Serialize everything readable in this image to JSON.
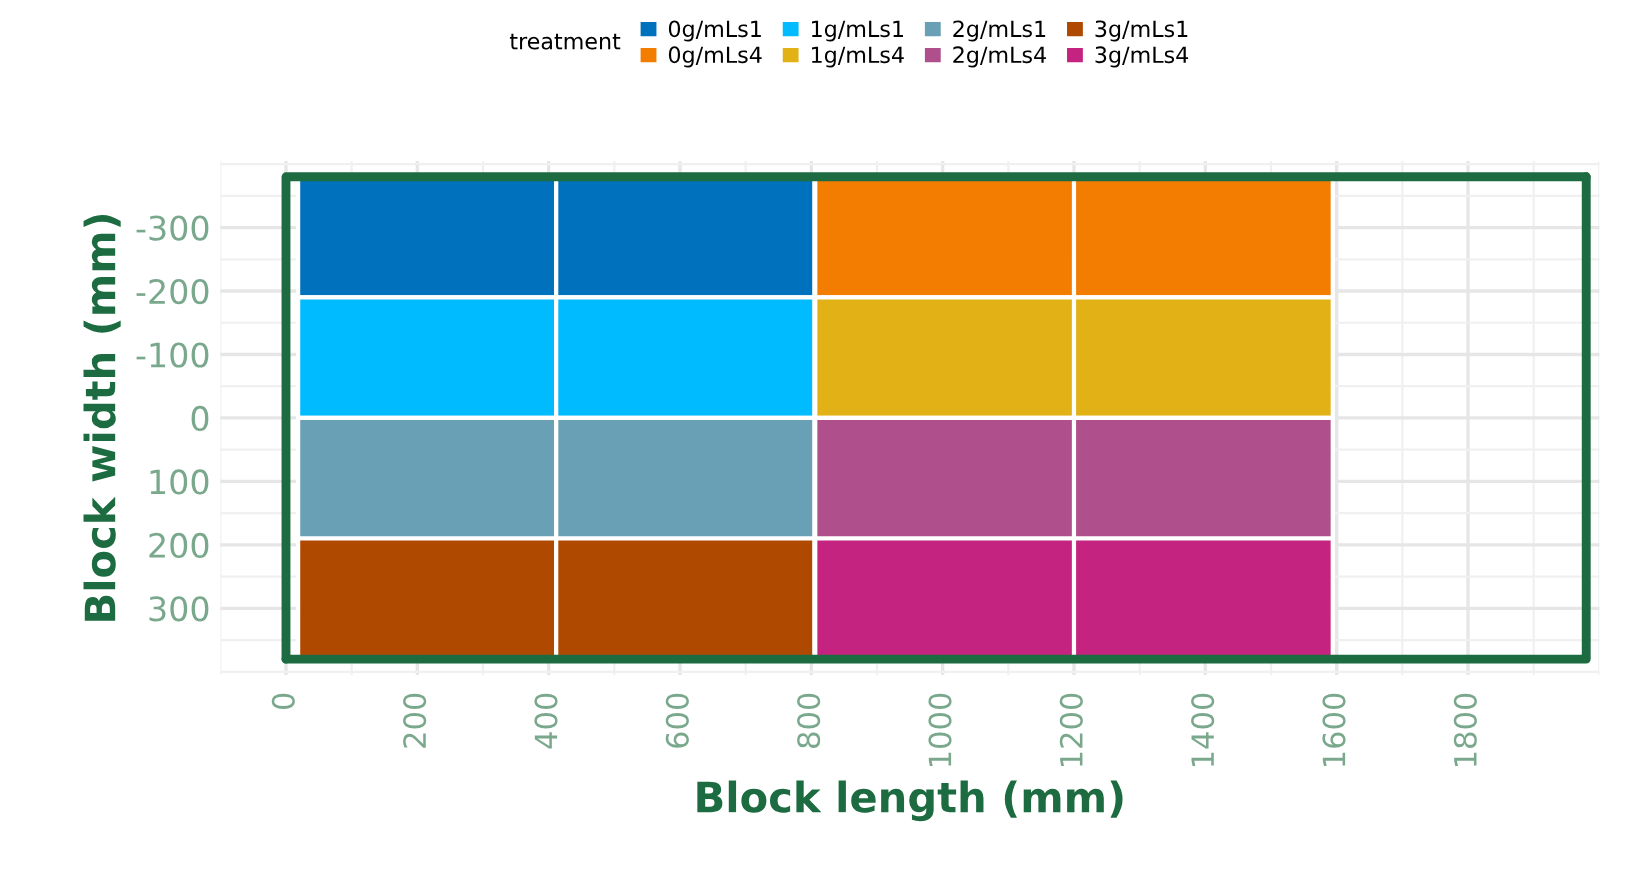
{
  "chart_data": {
    "type": "bar",
    "xlabel": "Block length (mm)",
    "ylabel": "Block width (mm)",
    "legend_title": "treatment",
    "legend": "top",
    "grid": true,
    "xlim": [
      -100,
      2000
    ],
    "xticks": [
      0,
      200,
      400,
      600,
      800,
      1000,
      1200,
      1400,
      1600,
      1800
    ],
    "ylim": [
      405,
      -405
    ],
    "yticks": [
      -300,
      -200,
      -100,
      0,
      100,
      200,
      300
    ],
    "series": [
      {
        "name": "0g/mLs1",
        "color": "#0072bd",
        "x": [
          215,
          608
        ],
        "base": [
          -380,
          -380
        ],
        "values": [
          190,
          190
        ]
      },
      {
        "name": "0g/mLs4",
        "color": "#f27d00",
        "x": [
          1003,
          1397
        ],
        "base": [
          -380,
          -380
        ],
        "values": [
          190,
          190
        ]
      },
      {
        "name": "1g/mLs1",
        "color": "#00bbff",
        "x": [
          215,
          608
        ],
        "base": [
          -190,
          -190
        ],
        "values": [
          190,
          190
        ]
      },
      {
        "name": "1g/mLs4",
        "color": "#e2b115",
        "x": [
          1003,
          1397
        ],
        "base": [
          -190,
          -190
        ],
        "values": [
          190,
          190
        ]
      },
      {
        "name": "2g/mLs1",
        "color": "#69a0b5",
        "x": [
          215,
          608
        ],
        "base": [
          0,
          0
        ],
        "values": [
          190,
          190
        ]
      },
      {
        "name": "2g/mLs4",
        "color": "#af4f8b",
        "x": [
          1003,
          1397
        ],
        "base": [
          0,
          0
        ],
        "values": [
          190,
          190
        ]
      },
      {
        "name": "3g/mLs1",
        "color": "#b04900",
        "x": [
          215,
          608
        ],
        "base": [
          190,
          190
        ],
        "values": [
          190,
          190
        ]
      },
      {
        "name": "3g/mLs4",
        "color": "#c4237f",
        "x": [
          1003,
          1397
        ],
        "base": [
          190,
          190
        ],
        "values": [
          190,
          190
        ]
      },
      {
        "type": "line",
        "color": "#1d6b40",
        "x": [
          0,
          0,
          1980
        ],
        "values": [
          380,
          -380,
          -380
        ]
      },
      {
        "type": "line",
        "color": "#1d6b40",
        "x": [
          0,
          1980,
          1980
        ],
        "values": [
          380,
          380,
          -380
        ]
      }
    ]
  }
}
